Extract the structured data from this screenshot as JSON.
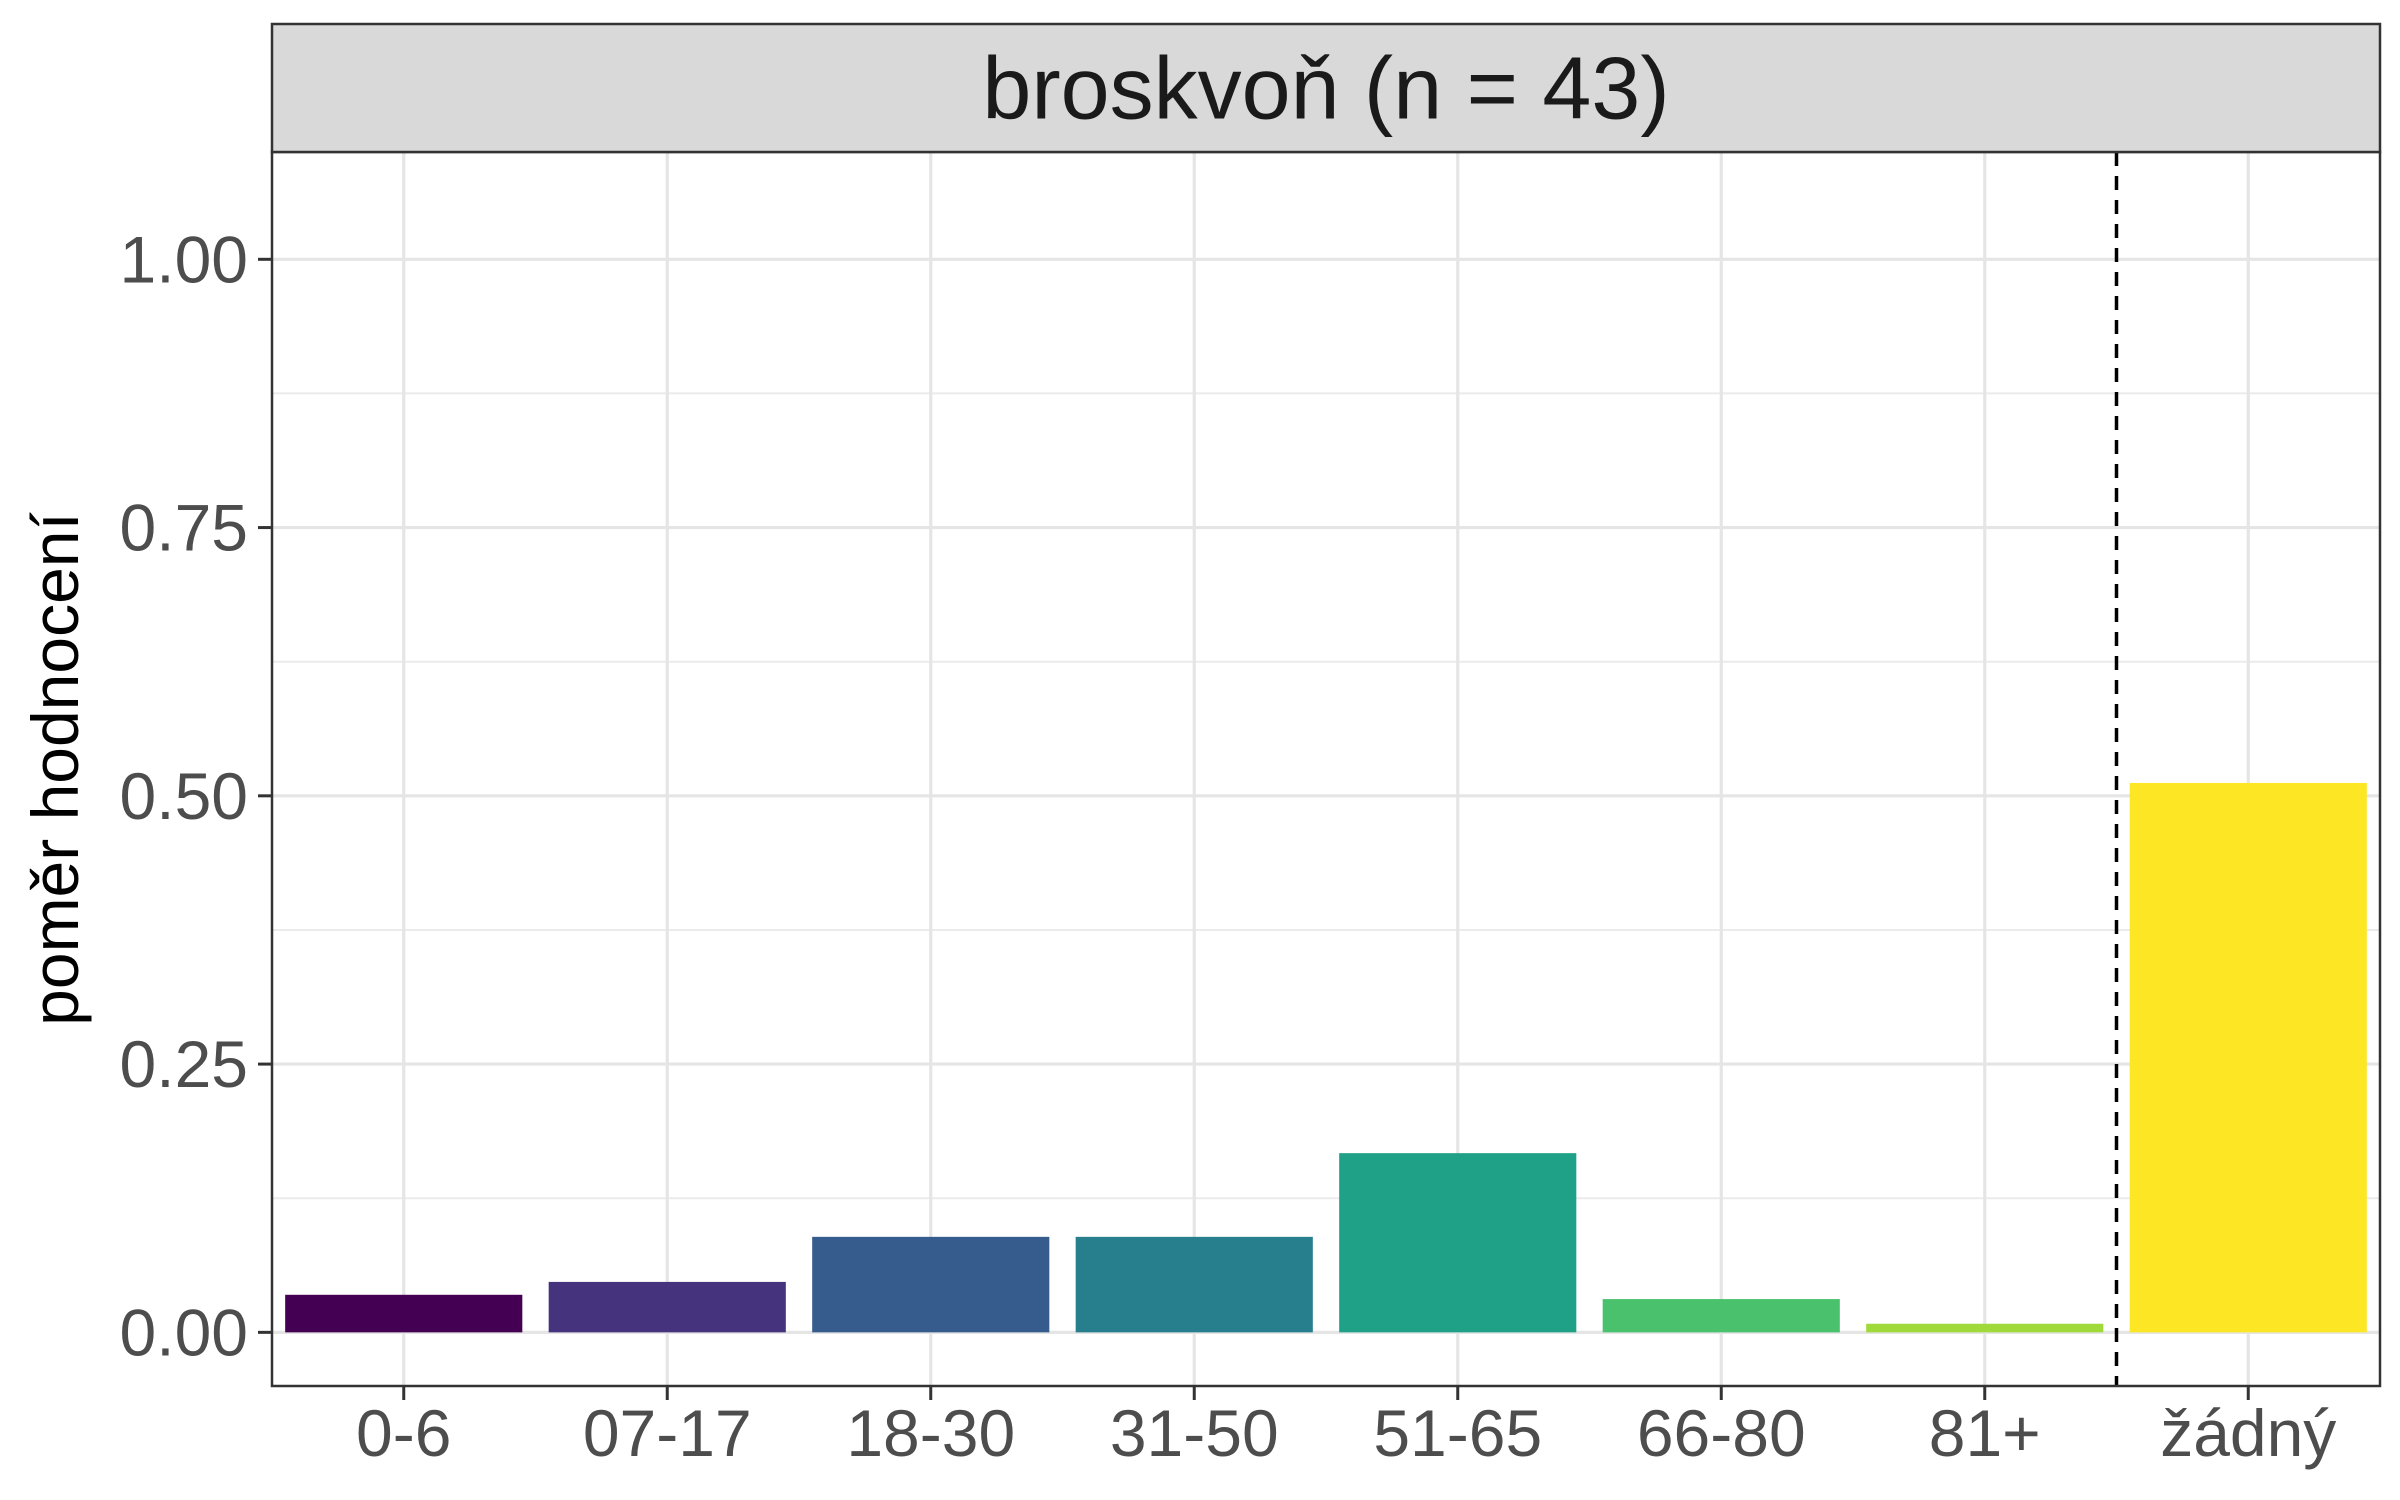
{
  "chart_data": {
    "type": "bar",
    "facet_title": "broskvoň (n = 43)",
    "title": "",
    "xlabel": "",
    "ylabel": "poměr hodnocení",
    "categories": [
      "0-6",
      "07-17",
      "18-30",
      "31-50",
      "51-65",
      "66-80",
      "81+",
      "žádný"
    ],
    "values": [
      0.035,
      0.047,
      0.089,
      0.089,
      0.167,
      0.031,
      0.008,
      0.512
    ],
    "colors": [
      "#440154",
      "#46337E",
      "#365C8D",
      "#277F8E",
      "#1FA187",
      "#4AC16D",
      "#9FDA3A",
      "#FDE725"
    ],
    "ylim": [
      -0.05,
      1.1
    ],
    "yticks": [
      0.0,
      0.25,
      0.5,
      0.75,
      1.0
    ],
    "ytick_labels": [
      "0.00",
      "0.25",
      "0.50",
      "0.75",
      "1.00"
    ],
    "separator": {
      "after_category": "81+",
      "style": "dashed"
    },
    "grid": true,
    "legend": "none"
  }
}
